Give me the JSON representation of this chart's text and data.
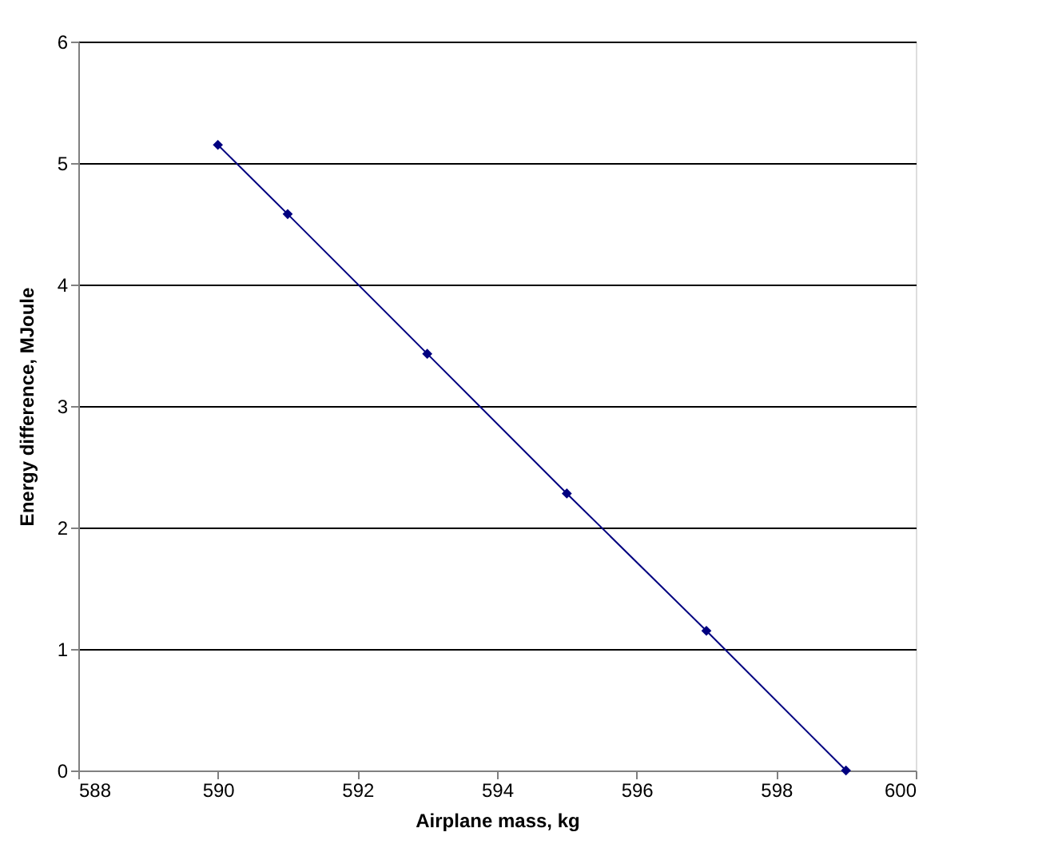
{
  "chart_data": {
    "type": "line",
    "xlabel": "Airplane mass, kg",
    "ylabel": "Energy difference, MJoule",
    "x": [
      590,
      591,
      593,
      595,
      597,
      599
    ],
    "series": [
      {
        "color": "#000080",
        "values": [
          5.15,
          4.58,
          3.43,
          2.28,
          1.15,
          0
        ]
      }
    ],
    "xlim": [
      588,
      600
    ],
    "xticks": [
      588,
      590,
      592,
      594,
      596,
      598,
      600
    ],
    "ylim": [
      0,
      6
    ],
    "yticks": [
      0,
      1,
      2,
      3,
      4,
      5,
      6
    ],
    "grid": "y",
    "marker": "diamond",
    "line_style": "solid",
    "legend": false
  }
}
